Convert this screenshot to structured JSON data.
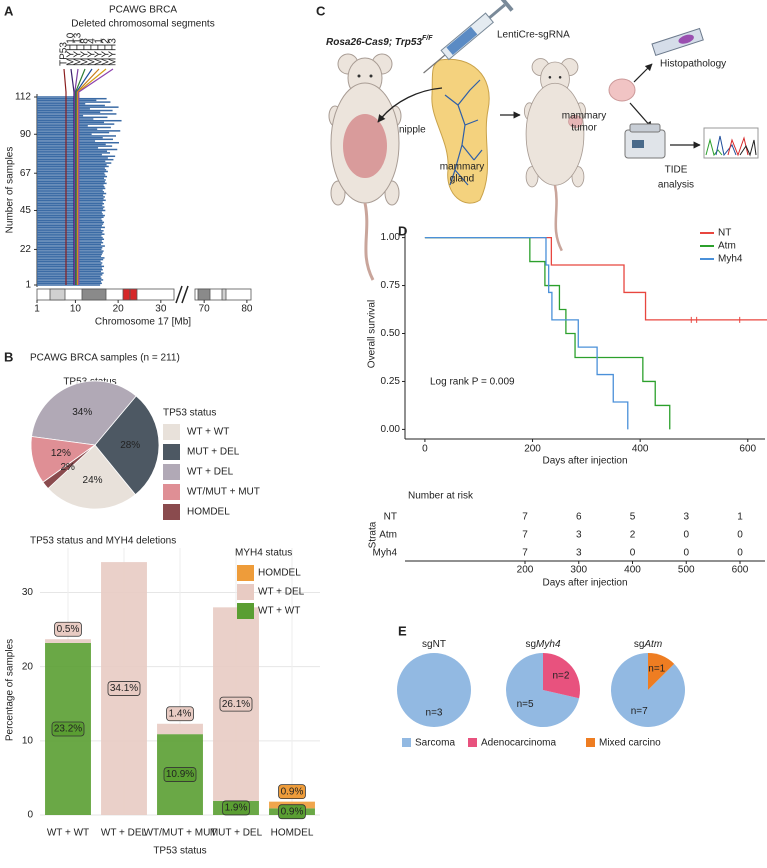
{
  "panels": [
    "A",
    "B",
    "C",
    "D",
    "E"
  ],
  "illustration": {
    "genotype": "Rosa26-Cas9; Trp53",
    "genotype_sup": "F/F",
    "vector": "LentiCre-sgRNA",
    "nipple": "nipple",
    "gland": [
      "mammary",
      "gland"
    ],
    "tumor": [
      "mammary",
      "tumor"
    ],
    "histo": "Histopathology",
    "tide": [
      "TIDE",
      "analysis"
    ]
  },
  "chart_data": [
    {
      "type": "bar",
      "orientation": "horizontal",
      "title": "PCAWG BRCA",
      "subtitle": "Deleted chromosomal segments",
      "ylabel": "Number of samples",
      "xlabel": "Chromosome 17 [Mb]",
      "values": [
        15.8,
        16.2,
        16.0,
        16.5,
        16.1,
        15.9,
        16.3,
        16.6,
        16.0,
        16.4,
        16.2,
        16.7,
        16.1,
        16.3,
        15.9,
        16.5,
        16.8,
        16.0,
        16.2,
        16.4,
        16.6,
        16.1,
        16.3,
        16.9,
        16.0,
        16.5,
        16.2,
        16.7,
        16.4,
        16.1,
        16.8,
        16.3,
        16.6,
        16.0,
        16.9,
        16.2,
        16.5,
        16.7,
        16.3,
        16.1,
        16.6,
        16.9,
        16.4,
        16.2,
        17.0,
        16.5,
        16.8,
        16.3,
        16.7,
        16.4,
        17.1,
        16.6,
        16.9,
        16.5,
        17.2,
        16.7,
        16.4,
        17.0,
        16.8,
        16.6,
        17.3,
        16.9,
        17.1,
        16.7,
        17.4,
        17.0,
        16.8,
        17.6,
        17.2,
        16.9,
        17.8,
        17.3,
        18.4,
        17.0,
        18.9,
        17.6,
        19.3,
        16.2,
        18.1,
        17.4,
        19.8,
        15.3,
        18.6,
        17.1,
        20.2,
        14.6,
        18.8,
        16.4,
        19.5,
        13.8,
        17.9,
        20.5,
        15.1,
        18.3,
        12.9,
        19.1,
        16.7,
        20.8,
        14.2,
        17.5,
        11.8,
        19.6,
        15.8,
        18.7,
        13.4,
        20.1,
        16.9,
        12.3,
        18.2,
        14.9,
        17.3,
        10.9
      ],
      "color": "#3b6ba5",
      "xlim": [
        1,
        81
      ],
      "axis_break": [
        33,
        68
      ],
      "xticks": [
        1,
        10,
        20,
        30,
        70,
        80
      ],
      "ylim": [
        1,
        112
      ],
      "yticks": [
        1,
        22,
        45,
        67,
        90,
        112
      ],
      "genes": [
        "TP53",
        "MYH10",
        "MYH13",
        "MYH8",
        "MYH4",
        "MYH1",
        "MYH2",
        "MYH3"
      ],
      "gene_colors": [
        "#8b1e1e",
        "#3b1f6e",
        "#7b3fa0",
        "#2e7d32",
        "#1f4e9c",
        "#c77d1a",
        "#d4a017",
        "#8e44ad"
      ]
    },
    {
      "type": "pie",
      "title": "PCAWG BRCA samples (n = 211)",
      "subtitle": "TP53 status",
      "legend_title": "TP53 status",
      "categories": [
        "WT + WT",
        "MUT + DEL",
        "WT + DEL",
        "WT/MUT + MUT",
        "HOMDEL"
      ],
      "values": [
        24,
        28,
        34,
        12,
        2
      ],
      "value_labels": [
        "24%",
        "28%",
        "34%",
        "12%",
        "2%"
      ],
      "colors": [
        "#e8e1da",
        "#4d5863",
        "#b1a9b6",
        "#df8f95",
        "#8a4b4e"
      ],
      "legend": "right"
    },
    {
      "type": "stacked_bar",
      "title": "TP53 status and MYH4 deletions",
      "ylabel": "Percentage of samples",
      "xlabel": "TP53 status",
      "categories": [
        "WT + WT",
        "WT + DEL",
        "WT/MUT + MUT",
        "MUT + DEL",
        "HOMDEL"
      ],
      "legend_title": "MYH4 status",
      "series": [
        {
          "name": "WT + WT",
          "color": "#5a9e32",
          "values": [
            23.2,
            0,
            10.9,
            1.9,
            0.9
          ],
          "value_labels": [
            "23.2%",
            null,
            "10.9%",
            "1.9%",
            "0.9%"
          ]
        },
        {
          "name": "WT + DEL",
          "color": "#e8cbc3",
          "values": [
            0.5,
            34.1,
            1.4,
            26.1,
            0
          ],
          "value_labels": [
            "0.5%",
            "34.1%",
            "1.4%",
            "26.1%",
            null
          ]
        },
        {
          "name": "HOMDEL",
          "color": "#ee9c3a",
          "values": [
            0,
            0,
            0,
            0,
            0.9
          ],
          "value_labels": [
            null,
            null,
            null,
            null,
            "0.9%"
          ]
        }
      ],
      "ylim": [
        0,
        36
      ],
      "yticks": [
        0,
        10,
        20,
        30
      ],
      "grid": true,
      "legend": "top-right"
    },
    {
      "type": "step",
      "ylabel": "Overall survival",
      "xlabel": "Days after injection",
      "annotation": "Log rank P = 0.009",
      "series": [
        {
          "name": "NT",
          "color": "#e8463f",
          "x": [
            0,
            235,
            370,
            410,
            640
          ],
          "values": [
            1,
            0.857,
            0.714,
            0.571,
            0.571
          ],
          "censored": [
            495,
            505,
            585
          ]
        },
        {
          "name": "Atm",
          "color": "#2ca02c",
          "x": [
            0,
            195,
            223,
            250,
            262,
            279,
            405,
            428,
            455
          ],
          "values": [
            1,
            0.875,
            0.75,
            0.625,
            0.5,
            0.375,
            0.25,
            0.125,
            0
          ]
        },
        {
          "name": "Myh4",
          "color": "#4a90d9",
          "x": [
            0,
            225,
            230,
            236,
            285,
            320,
            350,
            377
          ],
          "values": [
            1,
            0.857,
            0.714,
            0.571,
            0.429,
            0.286,
            0.143,
            0
          ]
        }
      ],
      "xlim": [
        -37,
        632
      ],
      "xticks": [
        0,
        200,
        400,
        600
      ],
      "ylim": [
        -0.05,
        1.05
      ],
      "yticks": [
        {
          "value": 0,
          "label": "0.00"
        },
        0.25,
        {
          "value": 0.5,
          "label": "0.50"
        },
        0.75,
        {
          "value": 1,
          "label": "1.00"
        }
      ],
      "legend": "top-right",
      "risk_table": {
        "title": "Number at risk",
        "ylabel": "Strata",
        "x": [
          200,
          300,
          400,
          500,
          600
        ],
        "rows": [
          [
            7,
            6,
            5,
            3,
            1
          ],
          [
            7,
            3,
            2,
            0,
            0
          ],
          [
            7,
            3,
            0,
            0,
            0
          ]
        ]
      }
    },
    {
      "type": "pie",
      "categories": [
        "Sarcoma",
        "Adenocarcinoma",
        "Mixed carcino"
      ],
      "colors": [
        "#92b9e2",
        "#e8527e",
        "#ee7d22"
      ],
      "pies": [
        {
          "title": [
            "sgNT"
          ],
          "values": [
            3,
            0,
            0
          ],
          "value_labels": [
            "n=3",
            null,
            null
          ]
        },
        {
          "title": [
            "sg",
            "Myh4"
          ],
          "values": [
            5,
            2,
            0
          ],
          "value_labels": [
            "n=5",
            "n=2",
            null
          ]
        },
        {
          "title": [
            "sg",
            "Atm"
          ],
          "values": [
            7,
            0,
            1
          ],
          "value_labels": [
            "n=7",
            null,
            "n=1"
          ]
        }
      ],
      "legend": "bottom"
    }
  ]
}
